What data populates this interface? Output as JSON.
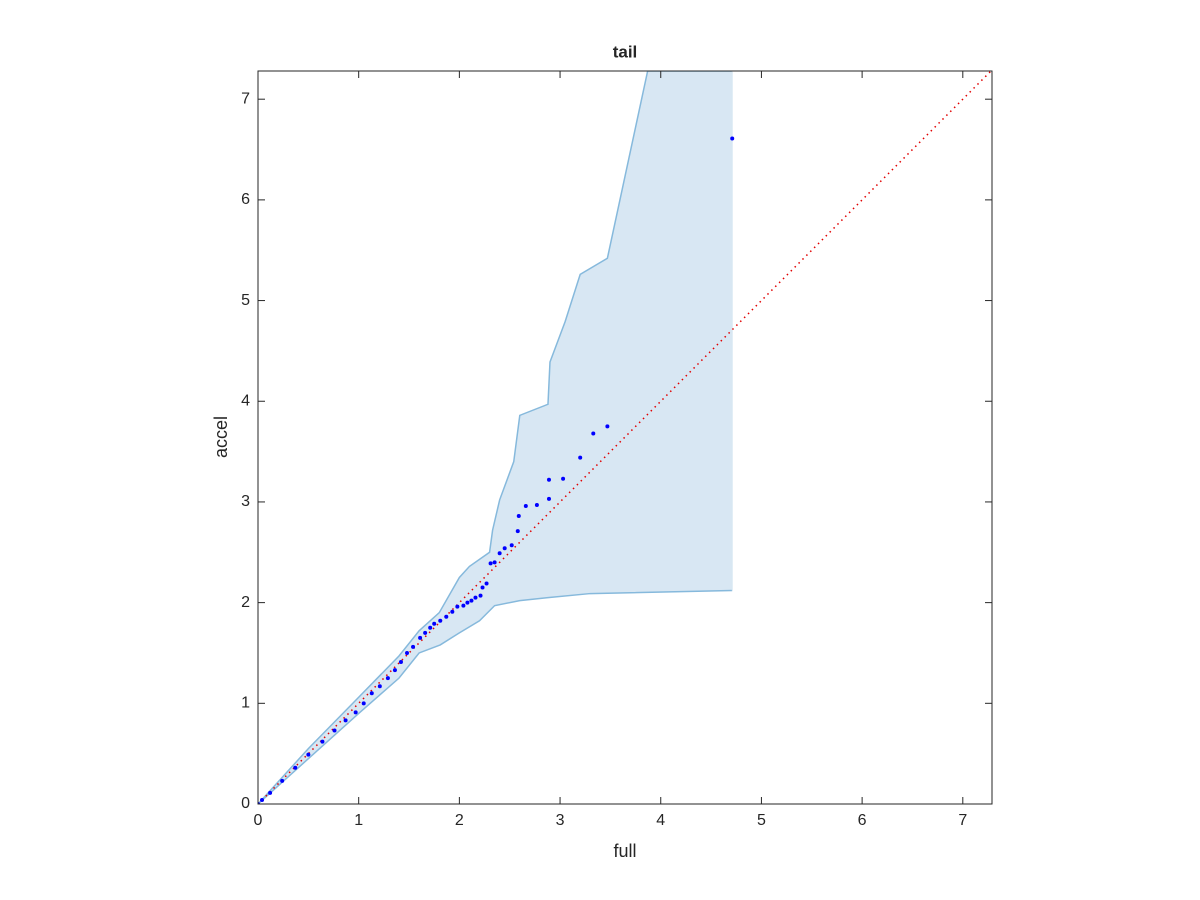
{
  "chart_data": {
    "type": "scatter",
    "title": "tail",
    "xlabel": "full",
    "ylabel": "accel",
    "xlim": [
      0,
      7.29
    ],
    "ylim": [
      0,
      7.28
    ],
    "xticks": [
      0,
      1,
      2,
      3,
      4,
      5,
      6,
      7
    ],
    "yticks": [
      0,
      1,
      2,
      3,
      4,
      5,
      6,
      7
    ],
    "series": [
      {
        "color": "#0000ff",
        "x": [
          0,
          0.04,
          0.12,
          0.24,
          0.37,
          0.5,
          0.64,
          0.76,
          0.87,
          0.97,
          1.05,
          1.13,
          1.21,
          1.29,
          1.36,
          1.42,
          1.48,
          1.54,
          1.61,
          1.66,
          1.71,
          1.75,
          1.81,
          1.87,
          1.93,
          1.98,
          2.04,
          2.08,
          2.12,
          2.16,
          2.21,
          2.23,
          2.27,
          2.31,
          2.35,
          2.4,
          2.45,
          2.52,
          2.58,
          2.59,
          2.66,
          2.77,
          2.89,
          2.89,
          3.03,
          3.2,
          3.33,
          3.47,
          4.71
        ],
        "values": [
          0,
          0.04,
          0.11,
          0.23,
          0.36,
          0.49,
          0.62,
          0.73,
          0.83,
          0.91,
          1.0,
          1.1,
          1.17,
          1.25,
          1.33,
          1.41,
          1.5,
          1.56,
          1.65,
          1.7,
          1.75,
          1.79,
          1.82,
          1.86,
          1.91,
          1.96,
          1.97,
          2.0,
          2.02,
          2.05,
          2.07,
          2.15,
          2.19,
          2.39,
          2.4,
          2.49,
          2.54,
          2.57,
          2.71,
          2.86,
          2.96,
          2.97,
          3.03,
          3.22,
          3.23,
          3.44,
          3.68,
          3.75,
          6.61
        ]
      }
    ],
    "band": {
      "color": "#d8e7f3",
      "edge_color": "#86b9dc",
      "upper": {
        "x": [
          0,
          0.5,
          1.0,
          1.4,
          1.6,
          1.8,
          2.0,
          2.1,
          2.3,
          2.33,
          2.4,
          2.54,
          2.6,
          2.88,
          2.9,
          3.05,
          3.2,
          3.47,
          3.87,
          4.71
        ],
        "y": [
          0,
          0.55,
          1.06,
          1.47,
          1.72,
          1.9,
          2.25,
          2.36,
          2.5,
          2.72,
          3.02,
          3.4,
          3.86,
          3.97,
          4.39,
          4.79,
          5.26,
          5.42,
          7.28,
          7.28
        ]
      },
      "lower": {
        "x": [
          0,
          0.5,
          1.0,
          1.4,
          1.6,
          1.81,
          2.0,
          2.2,
          2.35,
          2.6,
          2.88,
          3.3,
          4.71
        ],
        "y": [
          0,
          0.45,
          0.9,
          1.25,
          1.5,
          1.58,
          1.7,
          1.82,
          1.97,
          2.02,
          2.05,
          2.09,
          2.12
        ]
      }
    },
    "reference_line": {
      "color": "#e00000",
      "x": [
        0,
        7.29
      ],
      "y": [
        0,
        7.29
      ]
    }
  }
}
